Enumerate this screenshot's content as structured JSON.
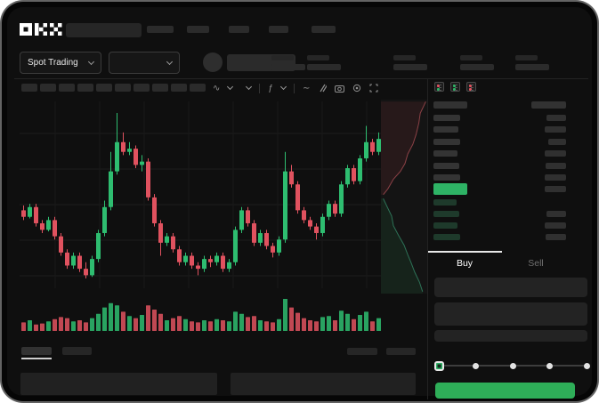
{
  "app": {
    "logo_text": "OKX"
  },
  "header": {
    "market_selector": {
      "label": "Spot Trading"
    },
    "nav_placeholder_count": 5
  },
  "chart_toolbar": {
    "interval_placeholder_count": 10,
    "icons": [
      {
        "name": "candle-style-icon",
        "glyph": "∿",
        "chevron": true
      },
      {
        "name": "chevron-down-icon",
        "glyph": "",
        "chevron": true
      },
      {
        "name": "divider"
      },
      {
        "name": "indicators-icon",
        "glyph": "ƒ",
        "chevron": true
      },
      {
        "name": "divider"
      },
      {
        "name": "trendline-icon",
        "glyph": "∼"
      },
      {
        "name": "drawing-tools-icon",
        "svg": "slashes"
      },
      {
        "name": "camera-icon",
        "svg": "camera"
      },
      {
        "name": "settings-icon",
        "svg": "gear"
      },
      {
        "name": "fullscreen-icon",
        "svg": "fullscreen"
      }
    ]
  },
  "orderbook": {
    "view_icons": [
      {
        "name": "orderbook-both-icon",
        "top": "#e0525f",
        "bottom": "#2eb365"
      },
      {
        "name": "orderbook-bids-icon",
        "top": "#2eb365",
        "bottom": "#2eb365"
      },
      {
        "name": "orderbook-asks-icon",
        "top": "#e0525f",
        "bottom": "#e0525f"
      }
    ],
    "header": {
      "left_w": 38,
      "right_w": 39
    },
    "asks": [
      {
        "l": 30,
        "r": 22
      },
      {
        "l": 28,
        "r": 24
      },
      {
        "l": 30,
        "r": 20
      },
      {
        "l": 27,
        "r": 24
      },
      {
        "l": 29,
        "r": 23
      },
      {
        "l": 30,
        "r": 24
      }
    ],
    "price_row": {
      "w": 38,
      "r": 24
    },
    "bids": [
      {
        "l": 26,
        "r": 0
      },
      {
        "l": 29,
        "r": 22
      },
      {
        "l": 27,
        "r": 24
      },
      {
        "l": 30,
        "r": 23
      }
    ]
  },
  "trade_panel": {
    "tabs": {
      "buy": "Buy",
      "sell": "Sell"
    },
    "active_tab": "Buy",
    "slider": {
      "stops": 5,
      "active_index": 0
    }
  },
  "colors": {
    "up_green": "#2ebd70",
    "down_red": "#e0525f",
    "price_green": "#2eb365",
    "buy_button_green": "#2eae58",
    "grid": "#1d1d1d",
    "panel_bg": "#161616"
  },
  "chart_data": [
    {
      "type": "candlestick",
      "title": "",
      "xlabel": "",
      "ylabel": "",
      "axis_labels_visible": false,
      "price_range": [
        38,
        95
      ],
      "candles_ohlc": [
        [
          62,
          63.5,
          59,
          60
        ],
        [
          60,
          64,
          59.5,
          63
        ],
        [
          63,
          64,
          57,
          58
        ],
        [
          58,
          59,
          55,
          56
        ],
        [
          56,
          60,
          55.5,
          59
        ],
        [
          59,
          60,
          53,
          54
        ],
        [
          54,
          55,
          48,
          49
        ],
        [
          49,
          50,
          44,
          45
        ],
        [
          45,
          49,
          44,
          48
        ],
        [
          48,
          49,
          43,
          44
        ],
        [
          44,
          46,
          41,
          42
        ],
        [
          42,
          48,
          41.5,
          47
        ],
        [
          47,
          56,
          46,
          55
        ],
        [
          55,
          65,
          54,
          63
        ],
        [
          63,
          80,
          62,
          74
        ],
        [
          74,
          92,
          73,
          83
        ],
        [
          83,
          86,
          79,
          80
        ],
        [
          80,
          83,
          79,
          81
        ],
        [
          81,
          82,
          75,
          76
        ],
        [
          76,
          79,
          74,
          77
        ],
        [
          77,
          78,
          65,
          66
        ],
        [
          66,
          67,
          57,
          58
        ],
        [
          58,
          59,
          48,
          52
        ],
        [
          52,
          55,
          51,
          54
        ],
        [
          54,
          55,
          49,
          50
        ],
        [
          50,
          51,
          45,
          46
        ],
        [
          46,
          49,
          45,
          48
        ],
        [
          48,
          49,
          44,
          45
        ],
        [
          45,
          46,
          42,
          44
        ],
        [
          44,
          48,
          43,
          47
        ],
        [
          47,
          48,
          44.5,
          46
        ],
        [
          46,
          49,
          45,
          48
        ],
        [
          48,
          49,
          43,
          44
        ],
        [
          44,
          47,
          43,
          46
        ],
        [
          46,
          57,
          45,
          56
        ],
        [
          56,
          63,
          55,
          62
        ],
        [
          62,
          63,
          57,
          58
        ],
        [
          58,
          59,
          51,
          52
        ],
        [
          52,
          56,
          51,
          55
        ],
        [
          55,
          56,
          50,
          51
        ],
        [
          51,
          52,
          47.5,
          49
        ],
        [
          49,
          54,
          48,
          53
        ],
        [
          53,
          80,
          52,
          74
        ],
        [
          74,
          76,
          69,
          70
        ],
        [
          70,
          71,
          61,
          62
        ],
        [
          62,
          63,
          58,
          59
        ],
        [
          59,
          60,
          56,
          57
        ],
        [
          57,
          58,
          53,
          55
        ],
        [
          55,
          61,
          54,
          60
        ],
        [
          60,
          65,
          59,
          64
        ],
        [
          64,
          65,
          60,
          61
        ],
        [
          61,
          71,
          60,
          70
        ],
        [
          70,
          76,
          69,
          75
        ],
        [
          75,
          76,
          70,
          71
        ],
        [
          71,
          79,
          70,
          78
        ],
        [
          78,
          88,
          77,
          83
        ],
        [
          83,
          84,
          79,
          80
        ],
        [
          80,
          86,
          79,
          84
        ]
      ],
      "volume": [
        8,
        10,
        6,
        7,
        9,
        11,
        13,
        12,
        9,
        10,
        8,
        12,
        16,
        22,
        26,
        24,
        18,
        14,
        12,
        15,
        24,
        20,
        16,
        10,
        12,
        14,
        11,
        9,
        8,
        10,
        9,
        11,
        10,
        9,
        18,
        16,
        13,
        14,
        10,
        9,
        8,
        11,
        30,
        22,
        17,
        12,
        10,
        9,
        13,
        14,
        10,
        19,
        16,
        11,
        15,
        18,
        9,
        12
      ],
      "grid": true,
      "legend": false
    },
    {
      "type": "area",
      "name": "depth-vertical",
      "asks_curve": [
        [
          0.97,
          0.01
        ],
        [
          0.85,
          0.07
        ],
        [
          0.82,
          0.12
        ],
        [
          0.76,
          0.18
        ],
        [
          0.69,
          0.23
        ],
        [
          0.58,
          0.28
        ],
        [
          0.52,
          0.33
        ],
        [
          0.42,
          0.37
        ],
        [
          0.27,
          0.41
        ],
        [
          0.15,
          0.46
        ],
        [
          0.05,
          0.49
        ]
      ],
      "bids_curve": [
        [
          0.05,
          0.51
        ],
        [
          0.15,
          0.56
        ],
        [
          0.23,
          0.6
        ],
        [
          0.27,
          0.65
        ],
        [
          0.38,
          0.7
        ],
        [
          0.5,
          0.75
        ],
        [
          0.58,
          0.8
        ],
        [
          0.65,
          0.84
        ],
        [
          0.73,
          0.89
        ],
        [
          0.83,
          0.94
        ],
        [
          0.9,
          0.99
        ]
      ]
    }
  ]
}
